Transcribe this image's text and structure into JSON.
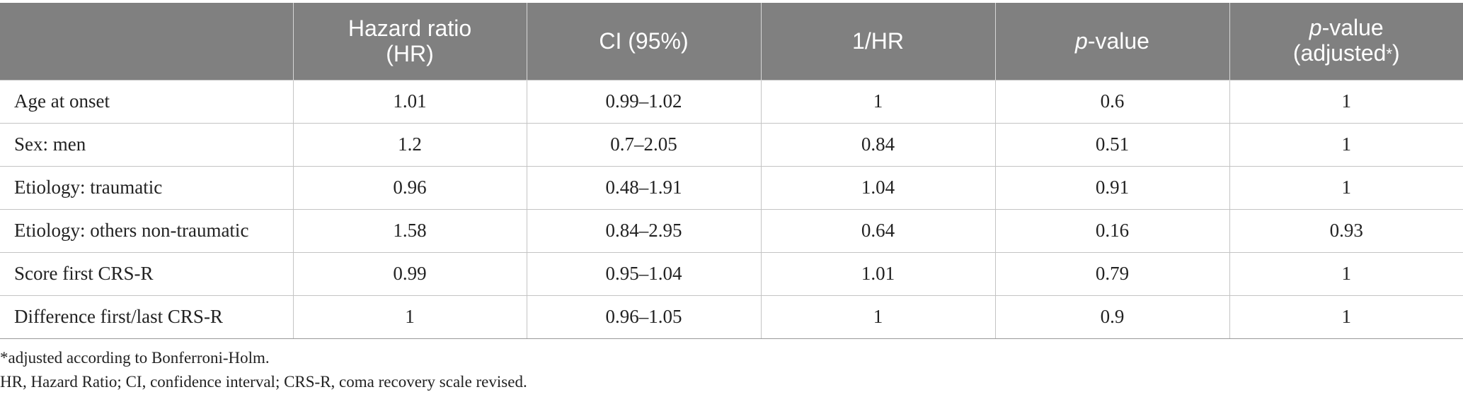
{
  "table": {
    "headers": [
      {
        "main": "",
        "sub": ""
      },
      {
        "main": "Hazard ratio",
        "sub": "(HR)"
      },
      {
        "main": "CI (95%)",
        "sub": ""
      },
      {
        "main": "1/HR",
        "sub": ""
      },
      {
        "italic": "p",
        "main": "-value",
        "sub": ""
      },
      {
        "italic": "p",
        "main": "-value",
        "sub": "(adjusted",
        "sub_mark": "*",
        "sub_end": ")"
      }
    ],
    "rows": [
      {
        "label": "Age at onset",
        "hr": "1.01",
        "ci": "0.99–1.02",
        "inv_hr": "1",
        "p": "0.6",
        "p_adj": "1"
      },
      {
        "label": "Sex: men",
        "hr": "1.2",
        "ci": "0.7–2.05",
        "inv_hr": "0.84",
        "p": "0.51",
        "p_adj": "1"
      },
      {
        "label": "Etiology: traumatic",
        "hr": "0.96",
        "ci": "0.48–1.91",
        "inv_hr": "1.04",
        "p": "0.91",
        "p_adj": "1"
      },
      {
        "label": "Etiology: others non-traumatic",
        "hr": "1.58",
        "ci": "0.84–2.95",
        "inv_hr": "0.64",
        "p": "0.16",
        "p_adj": "0.93"
      },
      {
        "label": "Score first CRS-R",
        "hr": "0.99",
        "ci": "0.95–1.04",
        "inv_hr": "1.01",
        "p": "0.79",
        "p_adj": "1"
      },
      {
        "label": "Difference first/last CRS-R",
        "hr": "1",
        "ci": "0.96–1.05",
        "inv_hr": "1",
        "p": "0.9",
        "p_adj": "1"
      }
    ]
  },
  "footnotes": {
    "adjusted": "*adjusted according to Bonferroni-Holm.",
    "abbreviations": "HR, Hazard Ratio; CI, confidence interval; CRS-R, coma recovery scale revised."
  }
}
